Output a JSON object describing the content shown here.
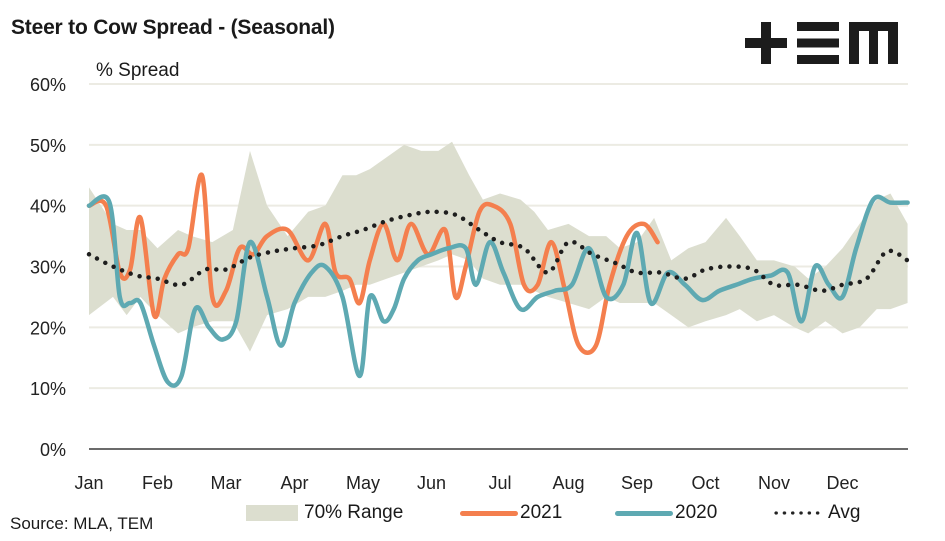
{
  "header": {
    "title": "Steer to Cow Spread - (Seasonal)",
    "logo_text": "+EM",
    "y_axis_title": "% Spread"
  },
  "footer": {
    "source": "Source: MLA, TEM"
  },
  "legend": [
    {
      "label": "70% Range",
      "kind": "area"
    },
    {
      "label": "2021",
      "kind": "line"
    },
    {
      "label": "2020",
      "kind": "line"
    },
    {
      "label": "Avg",
      "kind": "dotted"
    }
  ],
  "colors": {
    "range": "#dcdecf",
    "s2021": "#f47f4e",
    "s2020": "#5ea9b2",
    "avg": "#1e1e1e",
    "grid": "#ecebe3",
    "axis": "#3a3a3a"
  },
  "chart_data": {
    "type": "line",
    "title": "Steer to Cow Spread - (Seasonal)",
    "xlabel": "",
    "ylabel": "% Spread",
    "ylim": [
      0,
      60
    ],
    "yticks": [
      "0%",
      "10%",
      "20%",
      "30%",
      "40%",
      "50%",
      "60%"
    ],
    "ytick_values": [
      0,
      10,
      20,
      30,
      40,
      50,
      60
    ],
    "categories": [
      "Jan",
      "Feb",
      "Mar",
      "Apr",
      "May",
      "Jun",
      "Jul",
      "Aug",
      "Sep",
      "Oct",
      "Nov",
      "Dec"
    ],
    "xlim_months": [
      0,
      11.95
    ],
    "grid": "horizontal",
    "legend_position": "bottom",
    "x_unit": "months since start of Jan",
    "range_70pct": {
      "name": "70% Range",
      "x": [
        0,
        0.35,
        0.55,
        0.75,
        1.0,
        1.3,
        1.5,
        1.8,
        2.1,
        2.35,
        2.6,
        2.9,
        3.2,
        3.45,
        3.7,
        3.9,
        4.1,
        4.35,
        4.6,
        4.85,
        5.1,
        5.3,
        5.55,
        5.75,
        6.0,
        6.3,
        6.5,
        6.7,
        7.0,
        7.3,
        7.55,
        7.75,
        8.0,
        8.25,
        8.5,
        8.75,
        9.0,
        9.3,
        9.5,
        9.75,
        10.0,
        10.3,
        10.5,
        10.75,
        11.0,
        11.25,
        11.5,
        11.7,
        11.95
      ],
      "upper": [
        43,
        37,
        36,
        36,
        33,
        36,
        35,
        34,
        36,
        49,
        40,
        35,
        39,
        40,
        45,
        45,
        46,
        48,
        50,
        49,
        49,
        50.5,
        45,
        41,
        42,
        41,
        39,
        36,
        37,
        35,
        35,
        33,
        34,
        38,
        31,
        33,
        34,
        38,
        35,
        31,
        31,
        30,
        28,
        30,
        33,
        37,
        41,
        42,
        37
      ],
      "lower": [
        22,
        25,
        22,
        25,
        22,
        19,
        20,
        21,
        21,
        16,
        22,
        23,
        25,
        25,
        26,
        27,
        27,
        28,
        29,
        30,
        31,
        32,
        31,
        28,
        27,
        27,
        26,
        25,
        24,
        23,
        25,
        24,
        24,
        24,
        22,
        20,
        21,
        22,
        23,
        21,
        22,
        20,
        19,
        21,
        19,
        20,
        23,
        23,
        24
      ]
    },
    "series": [
      {
        "name": "2021",
        "x": [
          0,
          0.25,
          0.45,
          0.6,
          0.75,
          0.95,
          1.1,
          1.3,
          1.45,
          1.65,
          1.8,
          2.0,
          2.2,
          2.4,
          2.6,
          2.9,
          3.2,
          3.45,
          3.6,
          3.8,
          3.95,
          4.1,
          4.3,
          4.5,
          4.7,
          4.95,
          5.2,
          5.35,
          5.5,
          5.7,
          5.9,
          6.15,
          6.35,
          6.55,
          6.75,
          6.95,
          7.15,
          7.4,
          7.6,
          7.85,
          8.1,
          8.3,
          8.55,
          8.75,
          9.0,
          9.25,
          9.45,
          9.65
        ],
        "values": [
          40,
          40,
          29,
          29.5,
          38,
          22,
          28,
          32,
          33,
          45,
          25,
          26,
          33,
          32,
          35,
          36,
          31,
          37,
          29,
          28,
          24,
          31,
          37,
          31,
          37,
          32,
          36,
          25,
          30,
          39,
          40,
          37,
          27,
          27,
          34,
          26,
          17,
          17,
          27,
          35,
          37,
          34,
          null,
          null,
          null,
          null,
          null,
          null
        ]
      },
      {
        "name": "2020",
        "x": [
          0,
          0.3,
          0.45,
          0.6,
          0.75,
          0.95,
          1.15,
          1.35,
          1.55,
          1.75,
          1.95,
          2.15,
          2.35,
          2.6,
          2.8,
          3.0,
          3.25,
          3.45,
          3.7,
          3.95,
          4.1,
          4.3,
          4.45,
          4.6,
          4.8,
          5.0,
          5.25,
          5.5,
          5.65,
          5.85,
          6.05,
          6.3,
          6.55,
          6.8,
          7.05,
          7.3,
          7.55,
          7.8,
          8.0,
          8.2,
          8.45,
          8.7,
          8.95,
          9.2,
          9.45,
          9.7,
          9.95,
          10.2,
          10.4,
          10.6,
          10.8,
          11.0,
          11.2,
          11.45,
          11.7,
          11.95
        ],
        "values": [
          40,
          40.5,
          25,
          24,
          24,
          17,
          11,
          12,
          23,
          20,
          18,
          21,
          34,
          25,
          17,
          24,
          29,
          30,
          25,
          12,
          25,
          21,
          23,
          28,
          31,
          32,
          33,
          33,
          27,
          34,
          29,
          23,
          25,
          26,
          27,
          33,
          25,
          27,
          35.5,
          24,
          29,
          27,
          24.5,
          26,
          27,
          28,
          28.5,
          29,
          21,
          30,
          27,
          25,
          33,
          41,
          40.5,
          40.5
        ]
      },
      {
        "name": "Avg",
        "style": "dotted",
        "x": [
          0,
          0.35,
          0.7,
          1.0,
          1.35,
          1.7,
          2.0,
          2.35,
          2.7,
          3.0,
          3.35,
          3.7,
          4.0,
          4.35,
          4.7,
          5.0,
          5.35,
          5.7,
          6.0,
          6.35,
          6.7,
          7.0,
          7.35,
          7.7,
          8.0,
          8.35,
          8.7,
          9.0,
          9.35,
          9.7,
          10.0,
          10.35,
          10.7,
          11.0,
          11.35,
          11.65,
          11.95
        ],
        "values": [
          32,
          30,
          28.5,
          28,
          27,
          29.5,
          29.5,
          31.5,
          32.5,
          33,
          33.5,
          35,
          36,
          37.5,
          38.5,
          39,
          38.5,
          36,
          34,
          33,
          29,
          34,
          32,
          30.5,
          29,
          29,
          28,
          29.5,
          30,
          29.5,
          27,
          27,
          26,
          27,
          28,
          32.5,
          31
        ]
      }
    ]
  }
}
